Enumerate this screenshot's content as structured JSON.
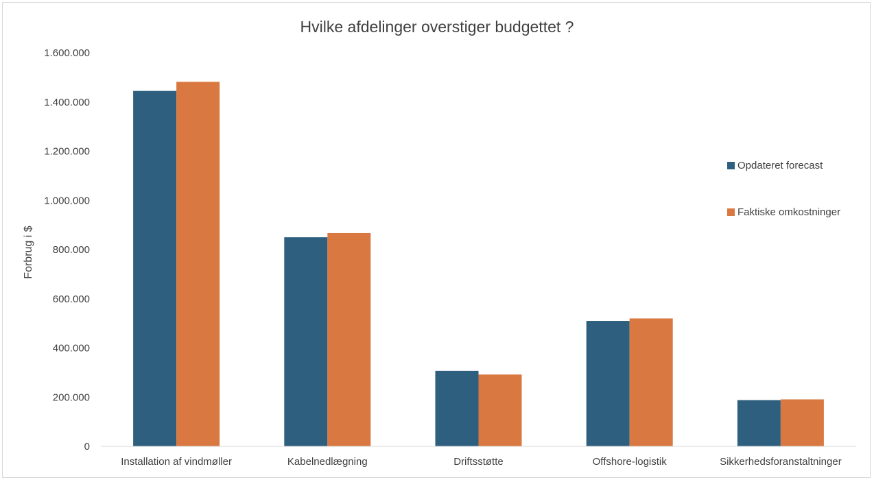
{
  "chart_data": {
    "type": "bar",
    "title": "Hvilke afdelinger overstiger budgettet ?",
    "xlabel": "",
    "ylabel": "Forbrug i $",
    "ylim": [
      0,
      1600000
    ],
    "ytick_step": 200000,
    "ytick_labels": [
      "0",
      "200.000",
      "400.000",
      "600.000",
      "800.000",
      "1.000.000",
      "1.200.000",
      "1.400.000",
      "1.600.000"
    ],
    "categories": [
      "Installation af vindmøller",
      "Kabelnedlægning",
      "Driftsstøtte",
      "Offshore-logistik",
      "Sikkerhedsforanstaltninger"
    ],
    "series": [
      {
        "name": "Opdateret forecast",
        "color": "#2e5f7e",
        "values": [
          1445000,
          850000,
          307000,
          510000,
          188000
        ]
      },
      {
        "name": "Faktiske omkostninger",
        "color": "#d97941",
        "values": [
          1482000,
          867000,
          292000,
          520000,
          191000
        ]
      }
    ],
    "legend_position": "right",
    "grid": false
  },
  "colors": {
    "axis": "#d9d9d9",
    "text": "#404040",
    "title": "#404040"
  }
}
